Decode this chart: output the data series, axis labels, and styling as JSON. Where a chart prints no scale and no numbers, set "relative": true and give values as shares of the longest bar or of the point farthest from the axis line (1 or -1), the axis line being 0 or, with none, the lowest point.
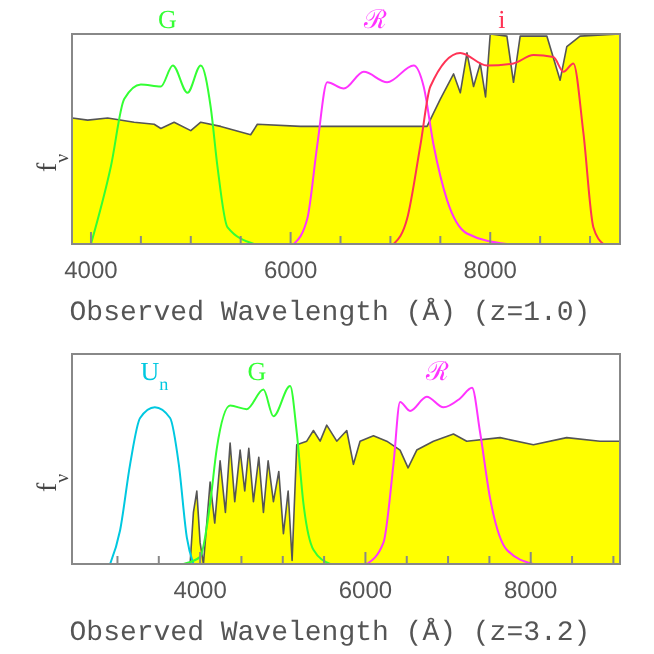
{
  "chart_data": [
    {
      "type": "area",
      "relative": true,
      "xlabel": "Observed Wavelength (Å) (z=1.0)",
      "ylabel": "f$_{ν}$",
      "xlim": [
        3810,
        9300
      ],
      "xticks": [
        4000,
        {
          "value": 4500,
          "label": null
        },
        {
          "value": 5000,
          "label": null
        },
        {
          "value": 5500,
          "label": null
        },
        6000,
        {
          "value": 6500,
          "label": null
        },
        {
          "value": 7000,
          "label": null
        },
        {
          "value": 7500,
          "label": null
        },
        8000,
        {
          "value": 8500,
          "label": null
        },
        {
          "value": 9000,
          "label": null
        }
      ],
      "series": [
        {
          "type": "area",
          "color": "#ffff00",
          "x": [
            3813,
            3967,
            4167,
            4433,
            4633,
            4700,
            4833,
            5000,
            5100,
            5300,
            5600,
            5667,
            6100,
            6767,
            7367,
            7500,
            7633,
            7700,
            7767,
            7833,
            7900,
            7953,
            8000,
            8167,
            8233,
            8300,
            8567,
            8700,
            8767,
            8900,
            9300
          ],
          "values": [
            0.6,
            0.59,
            0.6,
            0.58,
            0.57,
            0.55,
            0.58,
            0.54,
            0.58,
            0.56,
            0.52,
            0.57,
            0.56,
            0.56,
            0.56,
            0.69,
            0.81,
            0.72,
            0.91,
            0.75,
            0.86,
            0.7,
            1.0,
            0.99,
            0.77,
            0.99,
            0.99,
            0.78,
            0.94,
            0.99,
            1.0
          ]
        },
        {
          "type": "line",
          "name": "G",
          "color": "#33ff33",
          "x": [
            4000,
            4200,
            4333,
            4500,
            4700,
            4820,
            4967,
            5100,
            5200,
            5267,
            5367,
            5633
          ],
          "values": [
            0,
            0.37,
            0.69,
            0.76,
            0.75,
            0.85,
            0.72,
            0.85,
            0.65,
            0.37,
            0.08,
            0
          ]
        },
        {
          "type": "line",
          "name": "ℛ",
          "color": "#ff33ff",
          "x": [
            6033,
            6167,
            6267,
            6367,
            6533,
            6733,
            6967,
            7233,
            7333,
            7433,
            7567,
            7767,
            8167
          ],
          "values": [
            0,
            0.12,
            0.47,
            0.77,
            0.74,
            0.82,
            0.77,
            0.85,
            0.75,
            0.47,
            0.21,
            0.05,
            0
          ]
        },
        {
          "type": "line",
          "name": "i",
          "color": "#ff3355",
          "x": [
            7033,
            7167,
            7300,
            7400,
            7700,
            7967,
            8233,
            8433,
            8633,
            8733,
            8833,
            8933,
            9033,
            9133
          ],
          "values": [
            0,
            0.12,
            0.47,
            0.75,
            0.91,
            0.85,
            0.86,
            0.9,
            0.89,
            0.82,
            0.86,
            0.53,
            0.08,
            0
          ]
        }
      ]
    },
    {
      "type": "area",
      "relative": true,
      "xlabel": "Observed Wavelength (Å) (z=3.2)",
      "ylabel": "f$_{ν}$",
      "xlim": [
        2450,
        9080
      ],
      "xticks": [
        {
          "value": 3000,
          "label": null
        },
        {
          "value": 3500,
          "label": null
        },
        4000,
        {
          "value": 4500,
          "label": null
        },
        {
          "value": 5000,
          "label": null
        },
        {
          "value": 5500,
          "label": null
        },
        6000,
        {
          "value": 6500,
          "label": null
        },
        {
          "value": 7000,
          "label": null
        },
        {
          "value": 7500,
          "label": null
        },
        8000,
        {
          "value": 8500,
          "label": null
        },
        {
          "value": 9000,
          "label": null
        }
      ],
      "series": [
        {
          "type": "area",
          "color": "#ffff00",
          "x": [
            3879,
            3919,
            3960,
            4000,
            4040,
            4121,
            4177,
            4242,
            4306,
            4363,
            4419,
            4484,
            4540,
            4589,
            4645,
            4710,
            4766,
            4823,
            4887,
            4952,
            5008,
            5065,
            5113,
            5169,
            5290,
            5371,
            5452,
            5532,
            5653,
            5774,
            5855,
            5935,
            6097,
            6258,
            6419,
            6516,
            6621,
            6823,
            7065,
            7226,
            7629,
            8032,
            8435,
            8839,
            9080
          ],
          "values": [
            0,
            0.29,
            0.41,
            0.12,
            0,
            0.46,
            0.23,
            0.58,
            0.29,
            0.68,
            0.35,
            0.64,
            0.41,
            0.65,
            0.35,
            0.6,
            0.29,
            0.58,
            0.35,
            0.52,
            0.17,
            0.41,
            0.02,
            0.67,
            0.69,
            0.75,
            0.69,
            0.78,
            0.69,
            0.75,
            0.56,
            0.69,
            0.72,
            0.69,
            0.64,
            0.54,
            0.64,
            0.69,
            0.73,
            0.69,
            0.71,
            0.67,
            0.71,
            0.69,
            0.69
          ]
        },
        {
          "type": "line",
          "name": "U$_{n}$",
          "color": "#00c8e0",
          "x": [
            2911,
            3032,
            3153,
            3274,
            3452,
            3637,
            3742,
            3839,
            3919
          ],
          "values": [
            0,
            0.19,
            0.56,
            0.82,
            0.88,
            0.82,
            0.56,
            0.15,
            0
          ]
        },
        {
          "type": "line",
          "name": "G",
          "color": "#33ff33",
          "x": [
            3798,
            4000,
            4121,
            4202,
            4363,
            4565,
            4766,
            4887,
            5089,
            5169,
            5250,
            5371,
            5573
          ],
          "values": [
            0,
            0.04,
            0.34,
            0.65,
            0.89,
            0.87,
            0.98,
            0.83,
            1.0,
            0.74,
            0.34,
            0.08,
            0
          ]
        },
        {
          "type": "line",
          "name": "ℛ",
          "color": "#ff33ff",
          "x": [
            6016,
            6218,
            6339,
            6419,
            6540,
            6742,
            6944,
            7145,
            7290,
            7387,
            7508,
            7710,
            8032
          ],
          "values": [
            0,
            0.12,
            0.56,
            0.91,
            0.86,
            0.94,
            0.88,
            0.93,
            0.99,
            0.74,
            0.37,
            0.08,
            0
          ]
        }
      ]
    }
  ]
}
